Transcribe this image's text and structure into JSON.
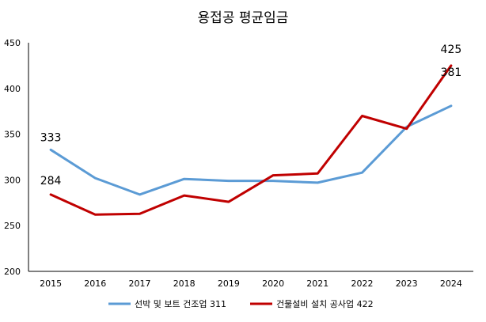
{
  "chart_data": {
    "type": "line",
    "title": "용접공 평균임금",
    "xlabel": "",
    "ylabel": "",
    "categories": [
      "2015",
      "2016",
      "2017",
      "2018",
      "2019",
      "2020",
      "2021",
      "2022",
      "2023",
      "2024"
    ],
    "ylim": [
      200,
      450
    ],
    "yticks": [
      200,
      250,
      300,
      350,
      400,
      450
    ],
    "grid": false,
    "legend": "bottom",
    "series": [
      {
        "name": "선박 및 보트 건조업 311",
        "color": "#5B9BD5",
        "values": [
          333,
          302,
          284,
          301,
          299,
          299,
          297,
          308,
          358,
          381
        ]
      },
      {
        "name": "건물설비 설치 공사업 422",
        "color": "#C00000",
        "values": [
          284,
          262,
          263,
          283,
          276,
          305,
          307,
          370,
          356,
          425
        ]
      }
    ],
    "annotations": [
      {
        "series": 0,
        "index": 0,
        "text": "333"
      },
      {
        "series": 1,
        "index": 0,
        "text": "284"
      },
      {
        "series": 1,
        "index": 9,
        "text": "425"
      },
      {
        "series": 0,
        "index": 9,
        "text": "381"
      }
    ]
  }
}
